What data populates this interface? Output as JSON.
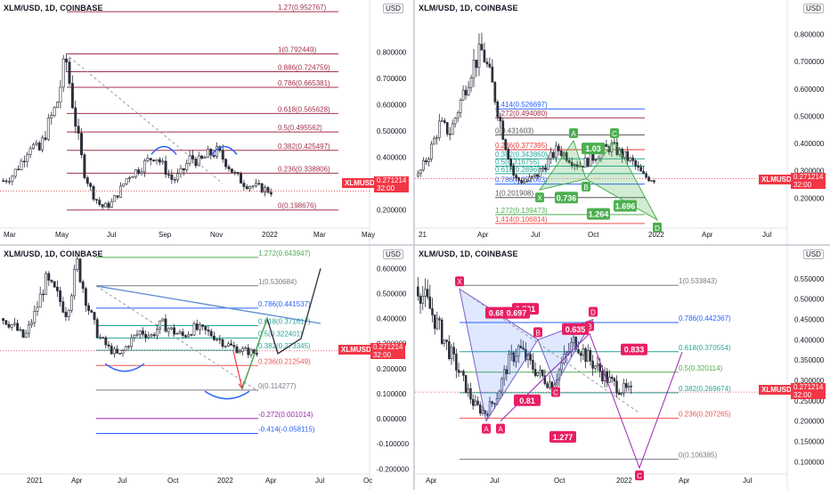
{
  "colors": {
    "candle": "#2a2e39",
    "fib_red": "#a3324b",
    "fib_red2": "#ef5350",
    "fib_green": "#26a69a",
    "fib_blue": "#2962ff",
    "fib_purple": "#9c27b0",
    "pattern_green": "#4caf50",
    "pattern_pink": "#e91e63",
    "price_red": "#f23645",
    "axis_text": "#131722",
    "trend_blue": "#2962ff"
  },
  "symbol": "XLMUSD",
  "current_price": "0.271214",
  "countdown": "32:00",
  "usd_label": "USD",
  "chart_data": [
    {
      "type": "line",
      "title": "XLM/USD, 1D, COINBASE",
      "x_ticks": [
        "Mar",
        "May",
        "Jul",
        "Sep",
        "Nov",
        "2022",
        "Mar",
        "May"
      ],
      "y_ticks": [
        "0.800000",
        "0.700000",
        "0.600000",
        "0.500000",
        "0.400000",
        "0.300000",
        "0.200000"
      ],
      "ylim": [
        0.13,
        0.95
      ],
      "fib_levels": [
        {
          "label": "1.27(0.952767)",
          "value": 0.952767
        },
        {
          "label": "1(0.792449)",
          "value": 0.792449
        },
        {
          "label": "0.886(0.724759)",
          "value": 0.724759
        },
        {
          "label": "0.786(0.665381)",
          "value": 0.665381
        },
        {
          "label": "0.618(0.565628)",
          "value": 0.565628
        },
        {
          "label": "0.5(0.495562)",
          "value": 0.495562
        },
        {
          "label": "0.382(0.425497)",
          "value": 0.425497
        },
        {
          "label": "0.236(0.338806)",
          "value": 0.338806
        },
        {
          "label": "0(0.198676)",
          "value": 0.198676
        }
      ],
      "close_series": [
        0.31,
        0.33,
        0.38,
        0.45,
        0.42,
        0.52,
        0.6,
        0.78,
        0.55,
        0.35,
        0.26,
        0.21,
        0.22,
        0.27,
        0.33,
        0.35,
        0.38,
        0.41,
        0.36,
        0.31,
        0.34,
        0.4,
        0.38,
        0.41,
        0.42,
        0.38,
        0.33,
        0.3,
        0.29,
        0.28,
        0.27
      ]
    },
    {
      "type": "line",
      "title": "XLM/USD, 1D, COINBASE",
      "x_ticks": [
        "21",
        "Apr",
        "Jul",
        "Oct",
        "2022",
        "Apr",
        "Jul"
      ],
      "y_ticks": [
        "0.800000",
        "0.700000",
        "0.600000",
        "0.500000",
        "0.400000",
        "0.300000",
        "0.200000"
      ],
      "ylim": [
        0.09,
        0.88
      ],
      "fib_levels": [
        {
          "label": "1.414(0.526697)",
          "value": 0.526697
        },
        {
          "label": "1.272(0.494080)",
          "value": 0.49408
        },
        {
          "label": "0(0.431603)",
          "value": 0.431603
        },
        {
          "label": "0.236(0.377395)",
          "value": 0.377395
        },
        {
          "label": "0.382(0.343860)",
          "value": 0.34386
        },
        {
          "label": "0.5(0.316755)",
          "value": 0.316755
        },
        {
          "label": "0.618(0.289651)",
          "value": 0.289651
        },
        {
          "label": "0.786(0.251063)",
          "value": 0.251063
        },
        {
          "label": "1(0.201908)",
          "value": 0.201908
        },
        {
          "label": "1.272(0.139473)",
          "value": 0.139473
        },
        {
          "label": "1.414(0.106814)",
          "value": 0.106814
        }
      ],
      "pattern_points": [
        "X",
        "A",
        "B",
        "C",
        "D"
      ],
      "pattern_ratios": [
        "1.03",
        "0.736",
        "1.696",
        "1.264"
      ],
      "close_series": [
        0.28,
        0.36,
        0.47,
        0.44,
        0.56,
        0.68,
        0.74,
        0.6,
        0.42,
        0.27,
        0.26,
        0.28,
        0.33,
        0.38,
        0.35,
        0.32,
        0.34,
        0.37,
        0.39,
        0.36,
        0.33,
        0.28,
        0.27
      ]
    },
    {
      "type": "line",
      "title": "XLM/USD, 1D, COINBASE",
      "x_ticks": [
        "2021",
        "Apr",
        "Jul",
        "Oct",
        "2022",
        "Apr",
        "Jul",
        "Oc"
      ],
      "y_ticks": [
        "0.600000",
        "0.500000",
        "0.400000",
        "0.300000",
        "0.200000",
        "0.100000",
        "0.000000",
        "-0.100000",
        "-0.200000"
      ],
      "ylim": [
        -0.22,
        0.64
      ],
      "fib_levels": [
        {
          "label": "1.272(0.643947)",
          "value": 0.643947
        },
        {
          "label": "1(0.530684)",
          "value": 0.530684
        },
        {
          "label": "0.786(0.441537)",
          "value": 0.441537
        },
        {
          "label": "0.618(0.371617)",
          "value": 0.371617
        },
        {
          "label": "0.5(0.322401)",
          "value": 0.322401
        },
        {
          "label": "0.382(0.273345)",
          "value": 0.273345
        },
        {
          "label": "0.236(0.212549)",
          "value": 0.212549
        },
        {
          "label": "0(0.114277)",
          "value": 0.114277
        },
        {
          "label": "-0.272(0.001014)",
          "value": 0.001014
        },
        {
          "label": "-0.414(-0.058115)",
          "value": -0.058115
        }
      ],
      "close_series": [
        0.4,
        0.37,
        0.32,
        0.42,
        0.55,
        0.5,
        0.42,
        0.62,
        0.45,
        0.33,
        0.28,
        0.25,
        0.31,
        0.35,
        0.33,
        0.38,
        0.35,
        0.33,
        0.36,
        0.35,
        0.33,
        0.3,
        0.28,
        0.27,
        0.26
      ]
    },
    {
      "type": "line",
      "title": "XLM/USD, 1D, COINBASE",
      "x_ticks": [
        "Apr",
        "Jul",
        "Oct",
        "2022",
        "Apr",
        "Jul"
      ],
      "y_ticks": [
        "0.550000",
        "0.500000",
        "0.450000",
        "0.400000",
        "0.350000",
        "0.300000",
        "0.250000",
        "0.200000",
        "0.150000",
        "0.100000"
      ],
      "ylim": [
        0.07,
        0.6
      ],
      "fib_levels": [
        {
          "label": "1(0.533843)",
          "value": 0.533843
        },
        {
          "label": "0.786(0.442367)",
          "value": 0.442367
        },
        {
          "label": "0.618(0.370554)",
          "value": 0.370554
        },
        {
          "label": "0.5(0.320114)",
          "value": 0.320114
        },
        {
          "label": "0.382(0.269674)",
          "value": 0.269674
        },
        {
          "label": "0.236(0.207265)",
          "value": 0.207265
        },
        {
          "label": "0(0.106385)",
          "value": 0.106385
        }
      ],
      "pattern_points": [
        "X",
        "A",
        "A",
        "B",
        "B",
        "C",
        "C",
        "D"
      ],
      "pattern_ratios": [
        "0.731",
        "0.683",
        "0.697",
        "0.81",
        "0.635",
        "0.833",
        "1.277"
      ],
      "close_series": [
        0.53,
        0.48,
        0.42,
        0.36,
        0.3,
        0.24,
        0.22,
        0.26,
        0.34,
        0.38,
        0.34,
        0.31,
        0.29,
        0.35,
        0.4,
        0.36,
        0.33,
        0.3,
        0.28,
        0.27
      ]
    }
  ]
}
